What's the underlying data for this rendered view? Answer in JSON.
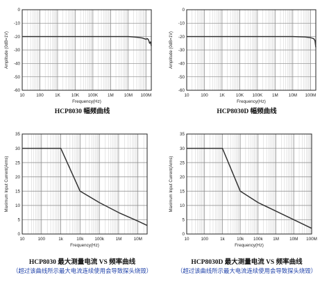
{
  "chart_data": [
    {
      "type": "line",
      "title": "HCP8030 幅频曲线",
      "xlabel": "Frequency(Hz)",
      "ylabel": "Amplitude (0dB=1V)",
      "xscale": "log",
      "xlim": [
        10,
        200000000
      ],
      "ylim": [
        -60,
        0
      ],
      "grid": true,
      "x_ticks": [
        10,
        100,
        1000,
        10000,
        100000,
        1000000,
        10000000,
        100000000
      ],
      "x_tick_labels": [
        "10",
        "100",
        "1K",
        "10K",
        "100K",
        "1M",
        "10M",
        "100M"
      ],
      "y_ticks": [
        0,
        -10,
        -20,
        -30,
        -40,
        -50,
        -60
      ],
      "y_tick_labels": [
        "0",
        "-10",
        "-20",
        "-30",
        "-40",
        "-50",
        "-60"
      ],
      "series": [
        {
          "x": [
            10,
            100000,
            10000000,
            30000000,
            60000000,
            100000000,
            120000000,
            140000000,
            160000000,
            180000000,
            200000000
          ],
          "values": [
            -20,
            -20,
            -20,
            -20.5,
            -21,
            -22,
            -21.5,
            -22.5,
            -25,
            -24,
            -27
          ]
        }
      ]
    },
    {
      "type": "line",
      "title": "HCP8030D 幅频曲线",
      "xlabel": "Frequency(Hz)",
      "ylabel": "Amplitude (0dB=1V)",
      "xscale": "log",
      "xlim": [
        10,
        200000000
      ],
      "ylim": [
        -60,
        0
      ],
      "grid": true,
      "x_ticks": [
        10,
        100,
        1000,
        10000,
        100000,
        1000000,
        10000000,
        100000000
      ],
      "x_tick_labels": [
        "10",
        "100",
        "1K",
        "10K",
        "100K",
        "1M",
        "10M",
        "100M"
      ],
      "y_ticks": [
        0,
        -10,
        -20,
        -30,
        -40,
        -50,
        -60
      ],
      "y_tick_labels": [
        "0",
        "-10",
        "-20",
        "-30",
        "-40",
        "-50",
        "-60"
      ],
      "series": [
        {
          "x": [
            10,
            1000000,
            10000000,
            50000000,
            100000000,
            150000000,
            180000000,
            200000000
          ],
          "values": [
            -20,
            -20,
            -20,
            -20.3,
            -20.8,
            -21.5,
            -23,
            -28
          ]
        }
      ]
    },
    {
      "type": "line",
      "title": "HCP8030 最大测量电流 VS 频率曲线",
      "note": "（超过该曲线所示最大电流连续使用会导致探头烧毁）",
      "xlabel": "Frequency(Hz)",
      "ylabel": "Maximum Input Current(Arms)",
      "xscale": "log",
      "xlim": [
        10,
        30000000
      ],
      "ylim": [
        0,
        35
      ],
      "grid": true,
      "x_ticks": [
        10,
        100,
        1000,
        10000,
        100000,
        1000000,
        10000000
      ],
      "x_tick_labels": [
        "10",
        "100",
        "1k",
        "10k",
        "100k",
        "1M",
        "10M"
      ],
      "y_ticks": [
        0,
        5,
        10,
        15,
        20,
        25,
        30,
        35
      ],
      "y_tick_labels": [
        "0",
        "5",
        "10",
        "15",
        "20",
        "25",
        "30",
        "35"
      ],
      "series": [
        {
          "x": [
            10,
            1000,
            10000,
            100000,
            1000000,
            10000000,
            30000000
          ],
          "values": [
            30,
            30,
            15,
            11,
            7.5,
            4.5,
            3
          ]
        }
      ]
    },
    {
      "type": "line",
      "title": "HCP8030D 最大测量电流 VS 频率曲线",
      "note": "（超过该曲线所示最大电流连续使用会导致探头烧毁）",
      "xlabel": "Frequency(Hz)",
      "ylabel": "Maximum Input Current(Arms)",
      "xscale": "log",
      "xlim": [
        10,
        100000000
      ],
      "ylim": [
        0,
        35
      ],
      "grid": true,
      "x_ticks": [
        10,
        100,
        1000,
        10000,
        100000,
        1000000,
        10000000,
        100000000
      ],
      "x_tick_labels": [
        "10",
        "100",
        "1k",
        "10k",
        "100k",
        "1M",
        "10M",
        "100M"
      ],
      "y_ticks": [
        0,
        5,
        10,
        15,
        20,
        25,
        30,
        35
      ],
      "y_tick_labels": [
        "0",
        "5",
        "10",
        "15",
        "20",
        "25",
        "30",
        "35"
      ],
      "series": [
        {
          "x": [
            10,
            1000,
            10000,
            100000,
            1000000,
            10000000,
            100000000
          ],
          "values": [
            30,
            30,
            15,
            11,
            8,
            5,
            2
          ]
        }
      ]
    }
  ]
}
